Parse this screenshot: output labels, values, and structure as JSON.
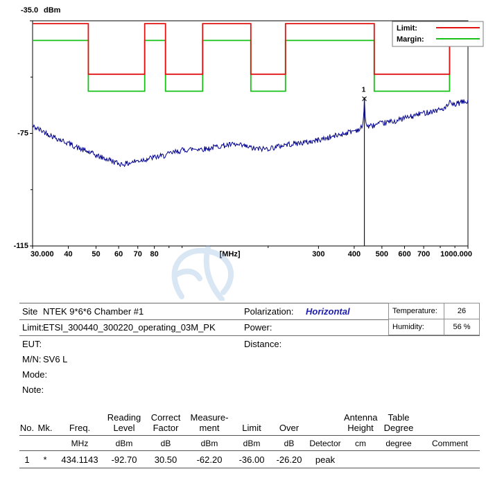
{
  "chart_data": {
    "type": "line",
    "title": "",
    "x_axis": {
      "scale": "log",
      "min": 30,
      "max": 1000,
      "unit_label": "[MHz]",
      "unit_label_freq": 147,
      "ticks": [
        {
          "f": 30,
          "label": "30.000"
        },
        {
          "f": 40,
          "label": "40"
        },
        {
          "f": 50,
          "label": "50"
        },
        {
          "f": 60,
          "label": "60"
        },
        {
          "f": 70,
          "label": "70"
        },
        {
          "f": 80,
          "label": "80"
        },
        {
          "f": 300,
          "label": "300"
        },
        {
          "f": 400,
          "label": "400"
        },
        {
          "f": 500,
          "label": "500"
        },
        {
          "f": 600,
          "label": "600"
        },
        {
          "f": 700,
          "label": "700"
        },
        {
          "f": 1000,
          "label": "1000.000"
        }
      ],
      "minor_ticks": [
        90,
        100,
        200,
        800,
        900
      ]
    },
    "y_axis": {
      "min": -115,
      "max": -35,
      "unit": "dBm",
      "top_label": "-35.0",
      "ticks": [
        {
          "v": -75,
          "label": "-75"
        },
        {
          "v": -115,
          "label": "-115"
        }
      ],
      "minor_ticks": [
        -55,
        -95
      ]
    },
    "series": [
      {
        "name": "Limit",
        "color": "#e11212",
        "style": "step",
        "segments": [
          [
            30,
            47,
            -36
          ],
          [
            47,
            74,
            -54
          ],
          [
            74,
            87.5,
            -36
          ],
          [
            87.5,
            118,
            -54
          ],
          [
            118,
            174,
            -36
          ],
          [
            174,
            230,
            -54
          ],
          [
            230,
            470,
            -36
          ],
          [
            470,
            862,
            -54
          ],
          [
            862,
            1000,
            -36
          ]
        ]
      },
      {
        "name": "Margin",
        "color": "#16c216",
        "style": "step-offset",
        "offset_db": -6
      },
      {
        "name": "Trace",
        "color": "#00008c",
        "style": "noisy-line",
        "noise_db": 1.0,
        "anchors": [
          [
            30,
            -72.5
          ],
          [
            33,
            -74.5
          ],
          [
            36,
            -76.5
          ],
          [
            40,
            -78.5
          ],
          [
            44,
            -80.5
          ],
          [
            48,
            -82
          ],
          [
            52,
            -83.5
          ],
          [
            56,
            -84.5
          ],
          [
            60,
            -85.8
          ],
          [
            64,
            -85.8
          ],
          [
            68,
            -85
          ],
          [
            72,
            -84.5
          ],
          [
            76,
            -84
          ],
          [
            80,
            -83.5
          ],
          [
            86,
            -83
          ],
          [
            92,
            -82
          ],
          [
            100,
            -81
          ],
          [
            110,
            -80.5
          ],
          [
            122,
            -80.5
          ],
          [
            135,
            -79.5
          ],
          [
            150,
            -79
          ],
          [
            165,
            -79.5
          ],
          [
            180,
            -80.5
          ],
          [
            195,
            -80.5
          ],
          [
            210,
            -80
          ],
          [
            230,
            -79
          ],
          [
            255,
            -78.5
          ],
          [
            280,
            -78
          ],
          [
            310,
            -77
          ],
          [
            340,
            -76
          ],
          [
            370,
            -75
          ],
          [
            400,
            -74
          ],
          [
            418,
            -73.5
          ],
          [
            428,
            -72.5
          ],
          [
            431,
            -70
          ],
          [
            433,
            -66
          ],
          [
            434.1143,
            -62.2
          ],
          [
            435.5,
            -66
          ],
          [
            438,
            -70.5
          ],
          [
            443,
            -72.5
          ],
          [
            455,
            -72.5
          ],
          [
            475,
            -72
          ],
          [
            500,
            -71.5
          ],
          [
            530,
            -71
          ],
          [
            565,
            -70.5
          ],
          [
            600,
            -69.5
          ],
          [
            640,
            -69
          ],
          [
            680,
            -68
          ],
          [
            720,
            -67.5
          ],
          [
            760,
            -67
          ],
          [
            800,
            -66.5
          ],
          [
            835,
            -66
          ],
          [
            855,
            -65
          ],
          [
            864,
            -63
          ],
          [
            872,
            -64.5
          ],
          [
            890,
            -65
          ],
          [
            915,
            -64.5
          ],
          [
            945,
            -64
          ],
          [
            975,
            -63.8
          ],
          [
            1000,
            -63.8
          ]
        ]
      }
    ],
    "marker": {
      "label": "1",
      "symbol": "x",
      "freq": 434.1143,
      "dbm": -62.2
    },
    "spike_freqs": [
      434.1143,
      864
    ]
  },
  "legend": {
    "items": [
      {
        "label": "Limit:",
        "color": "#e11212"
      },
      {
        "label": "Margin:",
        "color": "#16c216"
      }
    ]
  },
  "info": {
    "site_label": "Site",
    "site_value": "NTEK 9*6*6 Chamber #1",
    "limit_label": "Limit:",
    "limit_value": "ETSI_300440_300220_operating_03M_PK",
    "eut_label": "EUT:",
    "mn_label": "M/N:",
    "mn_value": "SV6 L",
    "mode_label": "Mode:",
    "note_label": "Note:",
    "polarization_label": "Polarization:",
    "polarization_value": "Horizontal",
    "power_label": "Power:",
    "distance_label": "Distance:",
    "temperature_label": "Temperature:",
    "temperature_value": "26",
    "humidity_label": "Humidity:",
    "humidity_value": "56 %"
  },
  "table": {
    "headers": [
      [
        "",
        "No."
      ],
      [
        "",
        "Mk."
      ],
      [
        "",
        "Freq."
      ],
      [
        "Reading",
        "Level"
      ],
      [
        "Correct",
        "Factor"
      ],
      [
        "Measure-",
        "ment"
      ],
      [
        "",
        "Limit"
      ],
      [
        "",
        "Over"
      ],
      [
        "",
        ""
      ],
      [
        "Antenna",
        "Height"
      ],
      [
        "Table",
        "Degree"
      ],
      [
        "",
        ""
      ]
    ],
    "units": [
      "",
      "",
      "MHz",
      "dBm",
      "dB",
      "dBm",
      "dBm",
      "dB",
      "Detector",
      "cm",
      "degree",
      "Comment"
    ],
    "rows": [
      [
        "1",
        "*",
        "434.1143",
        "-92.70",
        "30.50",
        "-62.20",
        "-36.00",
        "-26.20",
        "peak",
        "",
        "",
        ""
      ]
    ]
  },
  "colors": {
    "limit": "#e11212",
    "margin": "#16c216",
    "trace": "#00008c",
    "polarization_text": "#1c1cb0"
  }
}
